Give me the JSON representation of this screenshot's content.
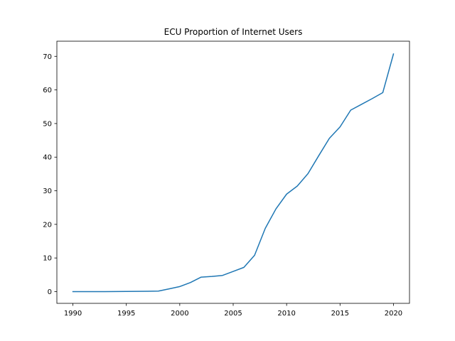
{
  "chart_data": {
    "type": "line",
    "title": "ECU Proportion of Internet Users",
    "xlabel": "",
    "ylabel": "",
    "xlim": [
      1988.5,
      2021.5
    ],
    "ylim": [
      -3.5,
      74.5
    ],
    "xticks": [
      1990,
      1995,
      2000,
      2005,
      2010,
      2015,
      2020
    ],
    "yticks": [
      0,
      10,
      20,
      30,
      40,
      50,
      60,
      70
    ],
    "grid": false,
    "line_color": "#1f77b4",
    "series": [
      {
        "x": [
          1990,
          1991,
          1992,
          1993,
          1994,
          1995,
          1996,
          1997,
          1998,
          1999,
          2000,
          2001,
          2002,
          2003,
          2004,
          2005,
          2006,
          2007,
          2008,
          2009,
          2010,
          2011,
          2012,
          2013,
          2014,
          2015,
          2016,
          2017,
          2018,
          2019,
          2020
        ],
        "y": [
          0,
          0,
          0,
          0,
          0.01,
          0.04,
          0.06,
          0.1,
          0.15,
          0.8,
          1.5,
          2.7,
          4.3,
          4.5,
          4.8,
          6,
          7.2,
          10.8,
          18.8,
          24.6,
          29,
          31.4,
          35.1,
          40.4,
          45.6,
          49,
          54,
          55.7,
          57.4,
          59.2,
          70.7
        ]
      }
    ]
  }
}
